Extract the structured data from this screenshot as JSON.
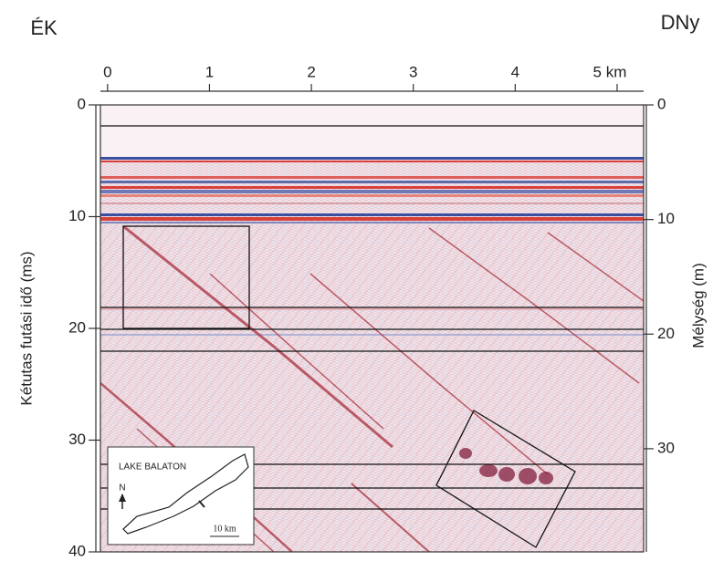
{
  "chart_data": {
    "type": "seismic-section",
    "left_corner_label": "ÉK",
    "right_corner_label": "DNy",
    "y_label": "Kétutas futási idő (ms)",
    "y2_label": "Mélység (m)",
    "xlim": [
      -0.07,
      5.26
    ],
    "xticks": [
      0,
      1,
      2,
      3,
      4,
      {
        "value": 5,
        "label": "5 km"
      }
    ],
    "ylim": [
      0,
      40
    ],
    "yticks": [
      0,
      10,
      20,
      30,
      40
    ],
    "y2lim": [
      0,
      39
    ],
    "y2ticks": [
      0,
      10,
      20,
      30
    ],
    "inset": {
      "title": "LAKE BALATON",
      "north": "N",
      "scale": "10 km"
    }
  }
}
